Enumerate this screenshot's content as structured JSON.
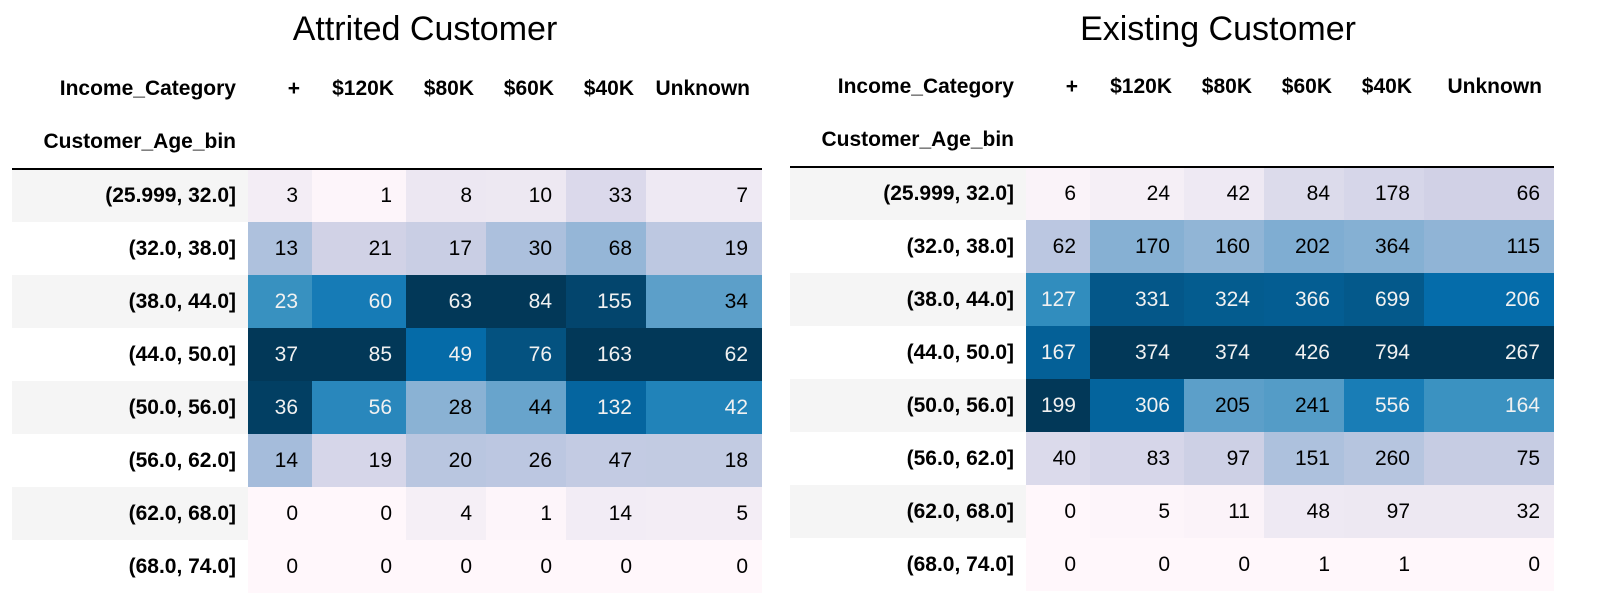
{
  "columns": [
    "+",
    "$120K",
    "$80K",
    "$60K",
    "$40K",
    "Unknown"
  ],
  "columns_index_name": "Income_Category",
  "rows_index_name": "Customer_Age_bin",
  "rows": [
    "(25.999, 32.0]",
    "(32.0, 38.0]",
    "(38.0, 44.0]",
    "(44.0, 50.0]",
    "(50.0, 56.0]",
    "(56.0, 62.0]",
    "(62.0, 68.0]",
    "(68.0, 74.0]"
  ],
  "tables": [
    {
      "title": "Attrited Customer",
      "values": [
        [
          3,
          1,
          8,
          10,
          33,
          7
        ],
        [
          13,
          21,
          17,
          30,
          68,
          19
        ],
        [
          23,
          60,
          63,
          84,
          155,
          34
        ],
        [
          37,
          85,
          49,
          76,
          163,
          62
        ],
        [
          36,
          56,
          28,
          44,
          132,
          42
        ],
        [
          14,
          19,
          20,
          26,
          47,
          18
        ],
        [
          0,
          0,
          4,
          1,
          14,
          5
        ],
        [
          0,
          0,
          0,
          0,
          0,
          0
        ]
      ]
    },
    {
      "title": "Existing Customer",
      "values": [
        [
          6,
          24,
          42,
          84,
          178,
          66
        ],
        [
          62,
          170,
          160,
          202,
          364,
          115
        ],
        [
          127,
          331,
          324,
          366,
          699,
          206
        ],
        [
          167,
          374,
          374,
          426,
          794,
          267
        ],
        [
          199,
          306,
          205,
          241,
          556,
          164
        ],
        [
          40,
          83,
          97,
          151,
          260,
          75
        ],
        [
          0,
          5,
          11,
          48,
          97,
          32
        ],
        [
          0,
          0,
          0,
          1,
          1,
          0
        ]
      ]
    }
  ],
  "colormap": {
    "name": "PuBu",
    "stops": [
      "#fff7fb",
      "#ece7f2",
      "#d0d1e6",
      "#a6bddb",
      "#74a9cf",
      "#3690c0",
      "#0570b0",
      "#045a8d",
      "#023858"
    ],
    "text_dark": "#000000",
    "text_light": "#f1f1f1"
  }
}
